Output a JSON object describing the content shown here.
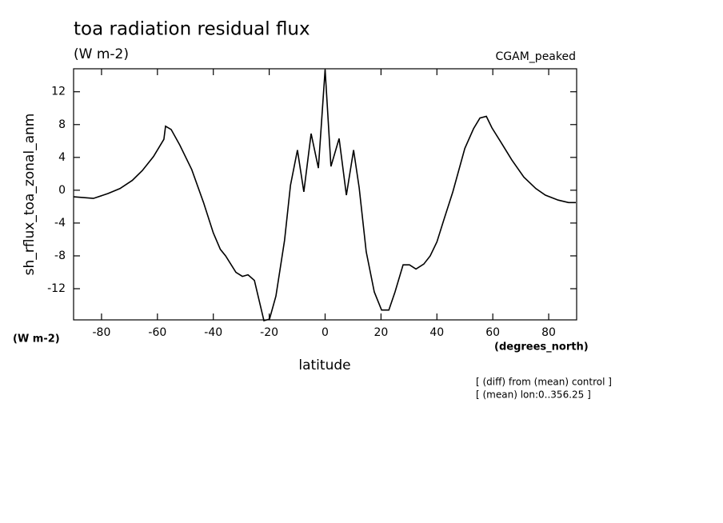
{
  "chart_data": {
    "type": "line",
    "title": "toa radiation residual flux",
    "subtitle": "(W m-2)",
    "dataset_label": "CGAM_peaked",
    "y_label": "sh_rflux_toa_zonal_anm",
    "y_units": "(W m-2)",
    "x_label": "latitude",
    "x_units": "(degrees_north)",
    "notes": [
      "[ (diff) from (mean) control ]",
      "[ (mean) lon:0..356.25 ]"
    ],
    "color": "#000000",
    "x": [
      -90,
      -82.9,
      -77.7,
      -73.4,
      -69,
      -65.4,
      -61.4,
      -57.7,
      -57.1,
      -55.1,
      -52,
      -47.7,
      -43.5,
      -40,
      -37.5,
      -35.6,
      -31.9,
      -29.6,
      -27.6,
      -25.3,
      -21.9,
      -19.9,
      -17.6,
      -14.5,
      -12.4,
      -9.9,
      -7.6,
      -5,
      -2.4,
      0,
      2.1,
      5,
      7.6,
      10.2,
      12.2,
      14.7,
      17.6,
      20.2,
      22.8,
      25,
      27.9,
      30.2,
      32.5,
      35.3,
      37.6,
      40,
      42.5,
      45.7,
      50,
      53.1,
      55.4,
      57.7,
      59.7,
      62.8,
      66.8,
      71.1,
      75.4,
      78.8,
      83.4,
      87.1,
      89.7
    ],
    "values": [
      -0.8,
      -1,
      -0.4,
      0.2,
      1.2,
      2.4,
      4.1,
      6.2,
      7.8,
      7.4,
      5.5,
      2.5,
      -1.5,
      -5.2,
      -7.2,
      -8,
      -10,
      -10.5,
      -10.3,
      -11,
      -15.9,
      -15.7,
      -12.9,
      -6.1,
      0.6,
      4.9,
      -0.2,
      6.9,
      2.7,
      14.7,
      2.9,
      6.3,
      -0.6,
      4.9,
      0.3,
      -7.5,
      -12.4,
      -14.6,
      -14.6,
      -12.4,
      -9.1,
      -9.1,
      -9.6,
      -9,
      -8,
      -6.3,
      -3.6,
      -0.2,
      5.1,
      7.5,
      8.8,
      9,
      7.6,
      5.9,
      3.7,
      1.6,
      0.2,
      -0.6,
      -1.2,
      -1.5,
      -1.5
    ],
    "xlim": [
      -90,
      90
    ],
    "xticks": [
      -80,
      -60,
      -40,
      -20,
      0,
      20,
      40,
      60,
      80
    ],
    "ylim": [
      -15.8,
      14.8
    ],
    "yticks": [
      -12,
      -8,
      -4,
      0,
      4,
      8,
      12
    ]
  }
}
